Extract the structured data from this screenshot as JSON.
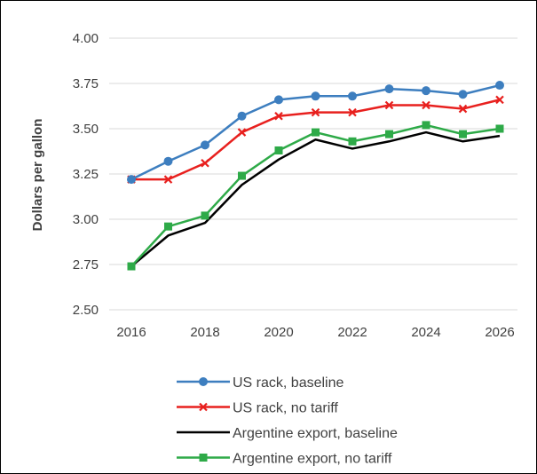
{
  "chart_data": {
    "type": "line",
    "title": "",
    "xlabel": "",
    "ylabel": "Dollars per gallon",
    "x": [
      2016,
      2017,
      2018,
      2019,
      2020,
      2021,
      2022,
      2023,
      2024,
      2025,
      2026
    ],
    "x_ticks": [
      "2016",
      "2018",
      "2020",
      "2022",
      "2024",
      "2026"
    ],
    "y_ticks": [
      "2.50",
      "2.75",
      "3.00",
      "3.25",
      "3.50",
      "3.75",
      "4.00"
    ],
    "xlim": [
      2016,
      2026
    ],
    "ylim": [
      2.5,
      4.0
    ],
    "grid": "horizontal",
    "legend_position": "bottom",
    "series": [
      {
        "name": "US rack, baseline",
        "color": "#3d7ebf",
        "marker": "circle",
        "values": [
          3.22,
          3.32,
          3.41,
          3.57,
          3.66,
          3.68,
          3.68,
          3.72,
          3.71,
          3.69,
          3.74
        ]
      },
      {
        "name": "US rack, no tariff",
        "color": "#e8201e",
        "marker": "x",
        "values": [
          3.22,
          3.22,
          3.31,
          3.48,
          3.57,
          3.59,
          3.59,
          3.63,
          3.63,
          3.61,
          3.66
        ]
      },
      {
        "name": "Argentine export, baseline",
        "color": "#000000",
        "marker": "none",
        "values": [
          2.74,
          2.91,
          2.98,
          3.19,
          3.33,
          3.44,
          3.39,
          3.43,
          3.48,
          3.43,
          3.46
        ]
      },
      {
        "name": "Argentine export, no tariff",
        "color": "#2eaa48",
        "marker": "square",
        "values": [
          2.74,
          2.96,
          3.02,
          3.24,
          3.38,
          3.48,
          3.43,
          3.47,
          3.52,
          3.47,
          3.5
        ]
      }
    ]
  }
}
